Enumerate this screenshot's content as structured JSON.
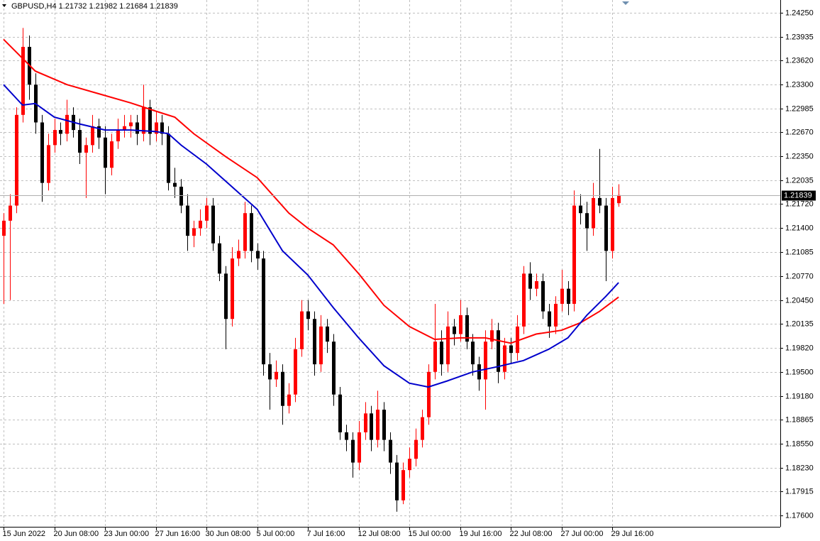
{
  "chart_data": {
    "type": "candlestick",
    "title": "GBPUSD,H4  1.21732 1.21982 1.21684 1.21839",
    "up_color": "#ff0000",
    "down_color": "#000000",
    "grid": true,
    "open": [
      1.213,
      1.215,
      1.217,
      1.229,
      1.238,
      1.233,
      1.228,
      1.22,
      1.225,
      1.227,
      1.2265,
      1.229,
      1.227,
      1.224,
      1.225,
      1.2275,
      1.226,
      1.222,
      1.2255,
      1.227,
      1.2275,
      1.228,
      1.2265,
      1.23,
      1.2265,
      1.228,
      1.2265,
      1.22,
      1.2195,
      1.217,
      1.213,
      1.214,
      1.215,
      1.217,
      1.212,
      1.208,
      1.202,
      1.21,
      1.211,
      1.216,
      1.211,
      1.21,
      1.196,
      1.194,
      1.195,
      1.1905,
      1.192,
      1.198,
      1.203,
      1.202,
      1.196,
      1.201,
      1.199,
      1.192,
      1.187,
      1.186,
      1.183,
      1.187,
      1.1895,
      1.186,
      1.19,
      1.186,
      1.183,
      1.178,
      1.182,
      1.1835,
      1.186,
      1.189,
      1.195,
      1.199,
      1.196,
      1.201,
      1.2,
      1.2025,
      1.199,
      1.196,
      1.194,
      1.199,
      1.2005,
      1.195,
      1.1985,
      1.1975,
      1.201,
      1.208,
      1.206,
      1.207,
      1.203,
      1.201,
      1.204,
      1.206,
      1.204,
      1.217,
      1.216,
      1.214,
      1.218,
      1.217,
      1.211,
      1.21732
    ],
    "high": [
      1.216,
      1.2185,
      1.23,
      1.2405,
      1.2395,
      1.2345,
      1.229,
      1.2265,
      1.2285,
      1.228,
      1.231,
      1.23,
      1.2285,
      1.226,
      1.229,
      1.2285,
      1.2275,
      1.2265,
      1.2285,
      1.229,
      1.229,
      1.229,
      1.233,
      1.231,
      1.2295,
      1.229,
      1.2275,
      1.222,
      1.2205,
      1.2185,
      1.215,
      1.2165,
      1.218,
      1.218,
      1.213,
      1.209,
      1.2115,
      1.2125,
      1.2175,
      1.217,
      1.212,
      1.211,
      1.1975,
      1.1965,
      1.196,
      1.1935,
      1.1995,
      1.2045,
      1.2045,
      1.203,
      1.2025,
      1.202,
      1.2,
      1.193,
      1.188,
      1.187,
      1.1885,
      1.191,
      1.1905,
      1.1925,
      1.191,
      1.187,
      1.184,
      1.183,
      1.185,
      1.1875,
      1.19,
      1.196,
      1.204,
      1.2005,
      1.203,
      1.202,
      1.2045,
      1.2035,
      1.2,
      1.197,
      1.2005,
      1.202,
      1.2015,
      1.1995,
      1.1995,
      1.2025,
      1.209,
      1.2095,
      1.208,
      1.208,
      1.204,
      1.205,
      1.2085,
      1.207,
      1.219,
      1.2185,
      1.2175,
      1.22,
      1.2245,
      1.218,
      1.2195,
      1.21982
    ],
    "low": [
      1.204,
      1.2045,
      1.216,
      1.228,
      1.231,
      1.2265,
      1.2175,
      1.219,
      1.224,
      1.225,
      1.2255,
      1.226,
      1.2225,
      1.218,
      1.224,
      1.2245,
      1.2185,
      1.221,
      1.2245,
      1.226,
      1.226,
      1.225,
      1.2255,
      1.225,
      1.2255,
      1.225,
      1.219,
      1.218,
      1.216,
      1.211,
      1.2115,
      1.213,
      1.214,
      1.211,
      1.207,
      1.198,
      1.201,
      1.209,
      1.21,
      1.2095,
      1.2085,
      1.1945,
      1.19,
      1.193,
      1.188,
      1.1895,
      1.191,
      1.197,
      1.2005,
      1.1945,
      1.195,
      1.1975,
      1.1905,
      1.186,
      1.1845,
      1.181,
      1.182,
      1.186,
      1.1845,
      1.185,
      1.1845,
      1.1815,
      1.1765,
      1.1775,
      1.181,
      1.1825,
      1.185,
      1.188,
      1.194,
      1.1945,
      1.195,
      1.1985,
      1.199,
      1.198,
      1.1945,
      1.1925,
      1.19,
      1.198,
      1.1935,
      1.194,
      1.196,
      1.1965,
      1.2,
      1.2045,
      1.205,
      1.202,
      1.1995,
      1.2,
      1.203,
      1.2025,
      1.203,
      1.2145,
      1.211,
      1.213,
      1.216,
      1.207,
      1.21,
      1.21684
    ],
    "close": [
      1.215,
      1.217,
      1.229,
      1.238,
      1.233,
      1.228,
      1.22,
      1.225,
      1.227,
      1.2265,
      1.229,
      1.227,
      1.224,
      1.225,
      1.2275,
      1.226,
      1.222,
      1.2255,
      1.227,
      1.2275,
      1.228,
      1.2265,
      1.23,
      1.2265,
      1.228,
      1.2265,
      1.22,
      1.2195,
      1.217,
      1.213,
      1.214,
      1.215,
      1.217,
      1.212,
      1.208,
      1.202,
      1.21,
      1.211,
      1.216,
      1.211,
      1.21,
      1.196,
      1.194,
      1.195,
      1.1905,
      1.192,
      1.198,
      1.203,
      1.202,
      1.196,
      1.201,
      1.199,
      1.192,
      1.187,
      1.186,
      1.183,
      1.187,
      1.1895,
      1.186,
      1.19,
      1.186,
      1.183,
      1.178,
      1.182,
      1.1835,
      1.186,
      1.189,
      1.195,
      1.199,
      1.196,
      1.201,
      1.2,
      1.2025,
      1.199,
      1.196,
      1.194,
      1.199,
      1.2005,
      1.195,
      1.1985,
      1.1975,
      1.201,
      1.208,
      1.206,
      1.207,
      1.203,
      1.201,
      1.204,
      1.206,
      1.204,
      1.217,
      1.216,
      1.214,
      1.218,
      1.217,
      1.211,
      1.218,
      1.21839
    ],
    "moving_averages": [
      {
        "color": "#ff0000",
        "x": [
          0,
          5,
          10,
          15,
          20,
          24,
          27,
          30,
          35,
          40,
          45,
          48,
          52,
          56,
          60,
          64,
          68,
          72,
          76,
          80,
          84,
          88,
          91,
          94,
          97
        ],
        "values": [
          1.239,
          1.2348,
          1.233,
          1.2318,
          1.2306,
          1.2295,
          1.2287,
          1.2265,
          1.2235,
          1.2207,
          1.216,
          1.214,
          1.2118,
          1.208,
          1.2038,
          1.201,
          1.1993,
          1.1995,
          1.1995,
          1.1988,
          1.2,
          1.2005,
          1.2015,
          1.203,
          1.2049
        ]
      },
      {
        "color": "#0000cc",
        "x": [
          0,
          3,
          5,
          8,
          12,
          16,
          20,
          24,
          26,
          28,
          32,
          36,
          40,
          44,
          48,
          52,
          56,
          60,
          64,
          67,
          70,
          74,
          78,
          82,
          86,
          89,
          92,
          95,
          97
        ],
        "values": [
          1.233,
          1.2303,
          1.2305,
          1.2287,
          1.2278,
          1.227,
          1.227,
          1.2268,
          1.2265,
          1.225,
          1.2225,
          1.2195,
          1.2165,
          1.211,
          1.2078,
          1.2035,
          1.1995,
          1.1958,
          1.1935,
          1.193,
          1.1938,
          1.195,
          1.1957,
          1.1965,
          1.198,
          1.1995,
          1.2025,
          1.205,
          1.2068
        ]
      }
    ],
    "last_price": 1.21839,
    "xlim": [
      -0.56,
      122.5
    ],
    "xticks": [
      {
        "value": 0,
        "label": "15 Jun 2022"
      },
      {
        "value": 8,
        "label": "20 Jun 08:00"
      },
      {
        "value": 16,
        "label": "23 Jun 00:00"
      },
      {
        "value": 24,
        "label": "27 Jun 16:00"
      },
      {
        "value": 32,
        "label": "30 Jun 08:00"
      },
      {
        "value": 40,
        "label": "5 Jul 00:00"
      },
      {
        "value": 48,
        "label": "7 Jul 16:00"
      },
      {
        "value": 56,
        "label": "12 Jul 08:00"
      },
      {
        "value": 64,
        "label": "15 Jul 00:00"
      },
      {
        "value": 72,
        "label": "19 Jul 16:00"
      },
      {
        "value": 80,
        "label": "22 Jul 08:00"
      },
      {
        "value": 88,
        "label": "27 Jul 00:00"
      },
      {
        "value": 96,
        "label": "29 Jul 16:00"
      }
    ],
    "ylim": [
      1.1745,
      1.2442
    ],
    "yticks": [
      {
        "value": 1.2425,
        "label": "1.24250"
      },
      1.23935,
      {
        "value": 1.2362,
        "label": "1.23620"
      },
      {
        "value": 1.233,
        "label": "1.23300"
      },
      1.22985,
      {
        "value": 1.2267,
        "label": "1.22670"
      },
      {
        "value": 1.2235,
        "label": "1.22350"
      },
      1.22035,
      {
        "value": 1.2172,
        "label": "1.21720"
      },
      {
        "value": 1.214,
        "label": "1.21400"
      },
      1.21085,
      {
        "value": 1.2077,
        "label": "1.20770"
      },
      {
        "value": 1.2045,
        "label": "1.20450"
      },
      1.20135,
      {
        "value": 1.1982,
        "label": "1.19820"
      },
      {
        "value": 1.195,
        "label": "1.19500"
      },
      {
        "value": 1.1918,
        "label": "1.19180"
      },
      1.18865,
      {
        "value": 1.1855,
        "label": "1.18550"
      },
      {
        "value": 1.1823,
        "label": "1.18230"
      },
      1.17915,
      {
        "value": 1.176,
        "label": "1.17600"
      }
    ]
  }
}
